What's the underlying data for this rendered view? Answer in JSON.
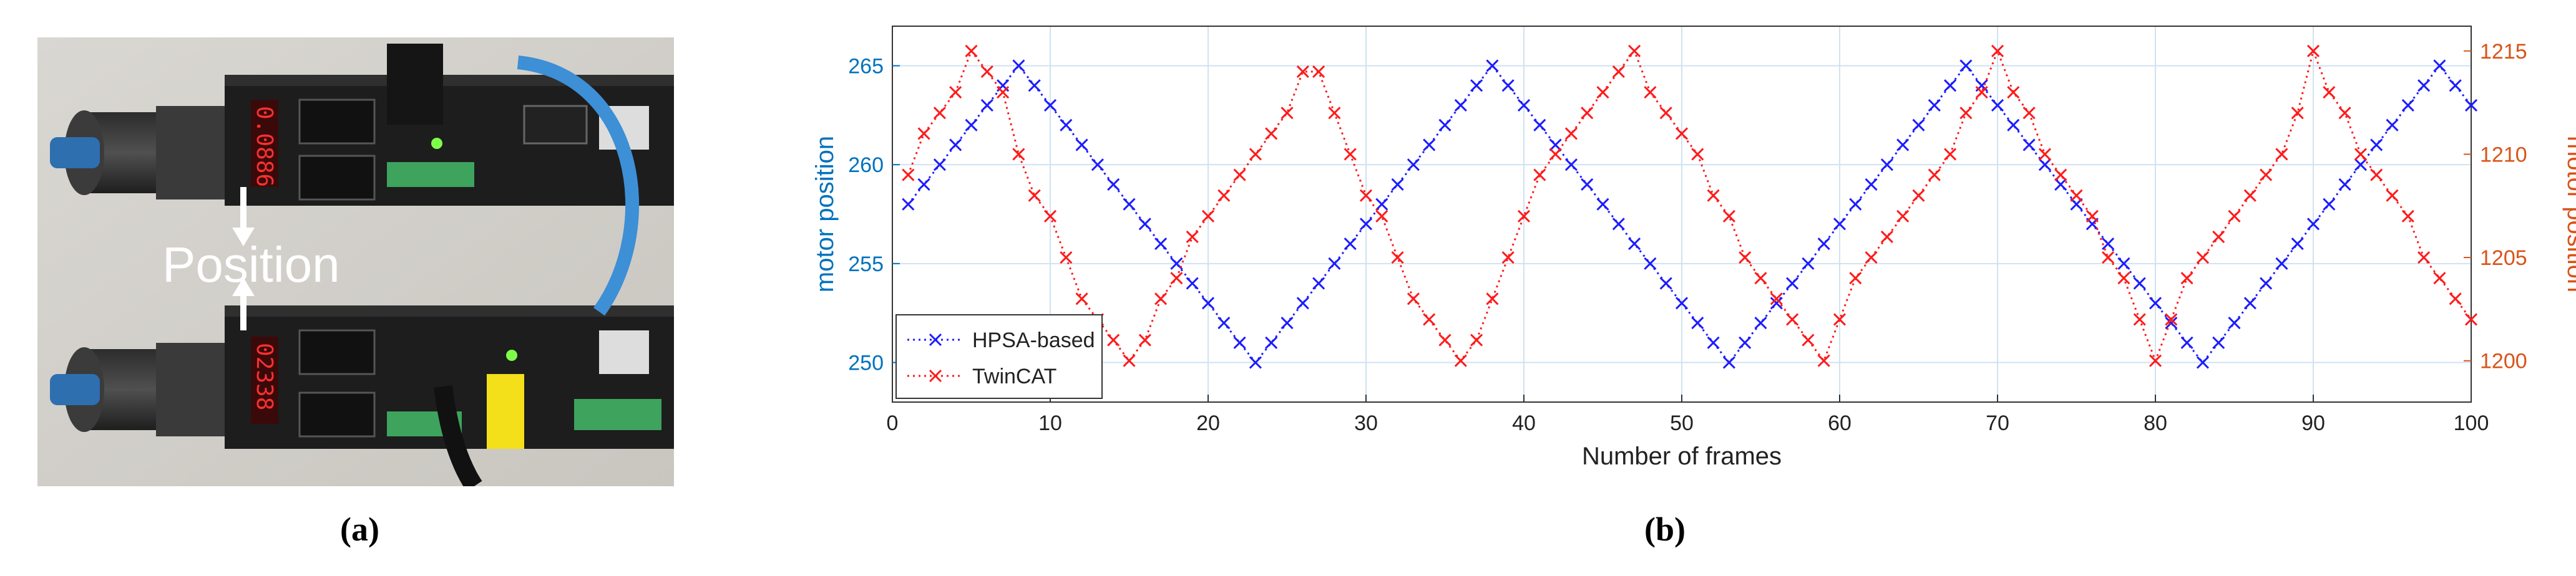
{
  "figure": {
    "caption_a": "(a)",
    "caption_b": "(b)",
    "photo": {
      "overlay_text": "Position",
      "display_top": "0.0886",
      "display_bottom": "02338"
    }
  },
  "colors": {
    "hpsa": "#1c1cff",
    "twincat": "#ff1a1a",
    "left_axis": "#0072bd",
    "right_axis": "#d95319",
    "grid": "#cfe2f1"
  },
  "chart_data": {
    "type": "line",
    "xlabel": "Number of frames",
    "ylabel_left": "motor position",
    "ylabel_right": "motor position",
    "xlim": [
      0,
      100
    ],
    "ylim_left": [
      248,
      267
    ],
    "ylim_right": [
      1198,
      1216.2
    ],
    "xticks": [
      0,
      10,
      20,
      30,
      40,
      50,
      60,
      70,
      80,
      90,
      100
    ],
    "yticks_left": [
      250,
      255,
      260,
      265
    ],
    "yticks_right": [
      1200,
      1205,
      1210,
      1215
    ],
    "grid": true,
    "legend_position": "lower-left",
    "series": [
      {
        "name": "HPSA-based",
        "axis": "left",
        "marker": "x",
        "line": "dotted",
        "x": [
          1,
          2,
          3,
          4,
          5,
          6,
          7,
          8,
          9,
          10,
          11,
          12,
          13,
          14,
          15,
          16,
          17,
          18,
          19,
          20,
          21,
          22,
          23,
          24,
          25,
          26,
          27,
          28,
          29,
          30,
          31,
          32,
          33,
          34,
          35,
          36,
          37,
          38,
          39,
          40,
          41,
          42,
          43,
          44,
          45,
          46,
          47,
          48,
          49,
          50,
          51,
          52,
          53,
          54,
          55,
          56,
          57,
          58,
          59,
          60,
          61,
          62,
          63,
          64,
          65,
          66,
          67,
          68,
          69,
          70,
          71,
          72,
          73,
          74,
          75,
          76,
          77,
          78,
          79,
          80,
          81,
          82,
          83,
          84,
          85,
          86,
          87,
          88,
          89,
          90,
          91,
          92,
          93,
          94,
          95,
          96,
          97,
          98,
          99,
          100
        ],
        "y": [
          258,
          259,
          260,
          261,
          262,
          263,
          264,
          265,
          264,
          263,
          262,
          261,
          260,
          259,
          258,
          257,
          256,
          255,
          254,
          253,
          252,
          251,
          250,
          251,
          252,
          253,
          254,
          255,
          256,
          257,
          258,
          259,
          260,
          261,
          262,
          263,
          264,
          265,
          264,
          263,
          262,
          261,
          260,
          259,
          258,
          257,
          256,
          255,
          254,
          253,
          252,
          251,
          250,
          251,
          252,
          253,
          254,
          255,
          256,
          257,
          258,
          259,
          260,
          261,
          262,
          263,
          264,
          265,
          264,
          263,
          262,
          261,
          260,
          259,
          258,
          257,
          256,
          255,
          254,
          253,
          252,
          251,
          250,
          251,
          252,
          253,
          254,
          255,
          256,
          257,
          258,
          259,
          260,
          261,
          262,
          263,
          264,
          265,
          264,
          263
        ]
      },
      {
        "name": "TwinCAT",
        "axis": "right",
        "marker": "x",
        "line": "dotted",
        "x": [
          1,
          2,
          3,
          4,
          5,
          6,
          7,
          8,
          9,
          10,
          11,
          12,
          13,
          14,
          15,
          16,
          17,
          18,
          19,
          20,
          21,
          22,
          23,
          24,
          25,
          26,
          27,
          28,
          29,
          30,
          31,
          32,
          33,
          34,
          35,
          36,
          37,
          38,
          39,
          40,
          41,
          42,
          43,
          44,
          45,
          46,
          47,
          48,
          49,
          50,
          51,
          52,
          53,
          54,
          55,
          56,
          57,
          58,
          59,
          60,
          61,
          62,
          63,
          64,
          65,
          66,
          67,
          68,
          69,
          70,
          71,
          72,
          73,
          74,
          75,
          76,
          77,
          78,
          79,
          80,
          81,
          82,
          83,
          84,
          85,
          86,
          87,
          88,
          89,
          90,
          91,
          92,
          93,
          94,
          95,
          96,
          97,
          98,
          99,
          100
        ],
        "y": [
          1209,
          1211,
          1212,
          1213,
          1215,
          1214,
          1213,
          1210,
          1208,
          1207,
          1205,
          1203,
          1202,
          1201,
          1200,
          1201,
          1203,
          1204,
          1206,
          1207,
          1208,
          1209,
          1210,
          1211,
          1212,
          1214,
          1214,
          1212,
          1210,
          1208,
          1207,
          1205,
          1203,
          1202,
          1201,
          1200,
          1201,
          1203,
          1205,
          1207,
          1209,
          1210,
          1211,
          1212,
          1213,
          1214,
          1215,
          1213,
          1212,
          1211,
          1210,
          1208,
          1207,
          1205,
          1204,
          1203,
          1202,
          1201,
          1200,
          1202,
          1204,
          1205,
          1206,
          1207,
          1208,
          1209,
          1210,
          1212,
          1213,
          1215,
          1213,
          1212,
          1210,
          1209,
          1208,
          1207,
          1205,
          1204,
          1202,
          1200,
          1202,
          1204,
          1205,
          1206,
          1207,
          1208,
          1209,
          1210,
          1212,
          1215,
          1213,
          1212,
          1210,
          1209,
          1208,
          1207,
          1205,
          1204,
          1203,
          1202
        ]
      }
    ]
  }
}
